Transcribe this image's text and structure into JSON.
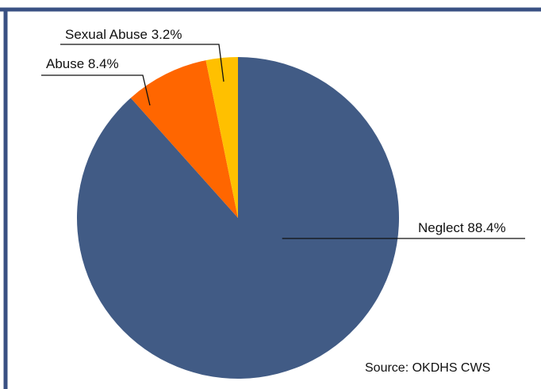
{
  "chart_data": {
    "type": "pie",
    "categories": [
      "Neglect",
      "Abuse",
      "Sexual Abuse"
    ],
    "values": [
      88.4,
      8.4,
      3.2
    ],
    "unit": "%",
    "labels": [
      "Neglect 88.4%",
      "Abuse 8.4%",
      "Sexual Abuse 3.2%"
    ],
    "colors": [
      "#415B85",
      "#FF6600",
      "#FFC000"
    ],
    "border_color": "#3A5183",
    "source": "Source: OKDHS CWS",
    "start_angle_deg": 0,
    "direction": "clockwise",
    "legend": "none"
  }
}
